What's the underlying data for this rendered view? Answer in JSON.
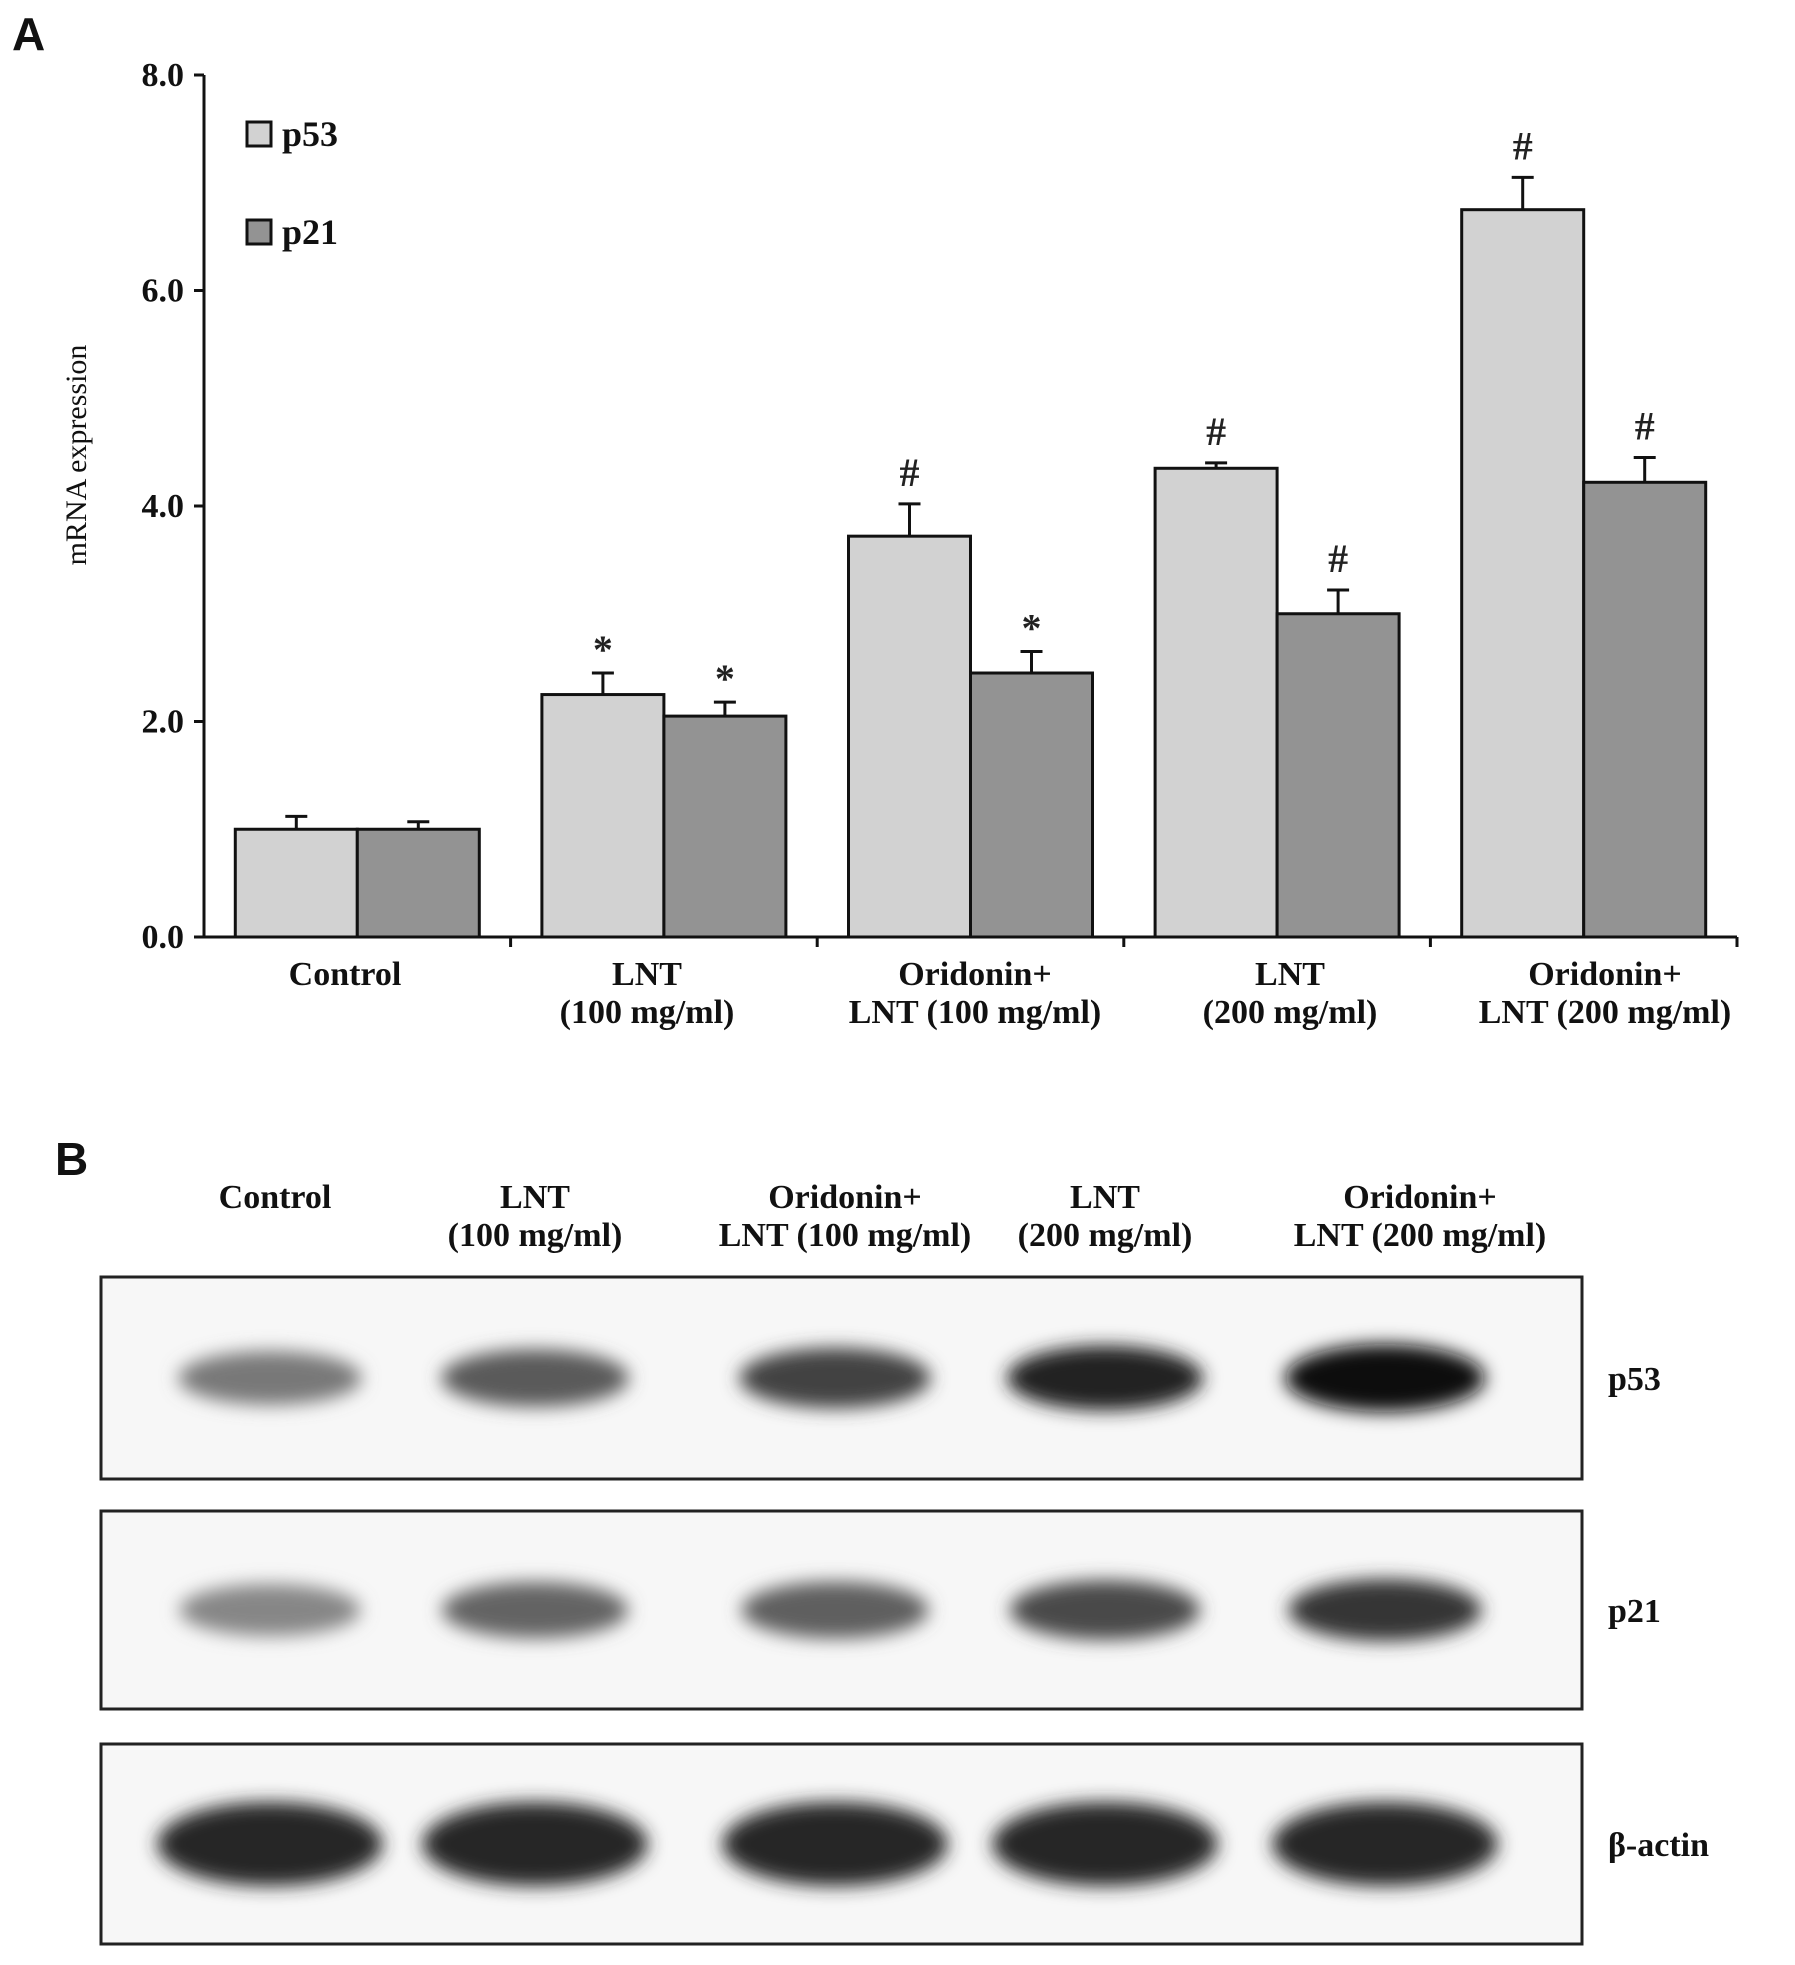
{
  "panel_a_label": "A",
  "panel_b_label": "B",
  "chart_data": {
    "type": "bar",
    "ylabel": "mRNA expression",
    "ylim": [
      0,
      8
    ],
    "yticks": [
      "0.0",
      "2.0",
      "4.0",
      "6.0",
      "8.0"
    ],
    "ytick_values": [
      0,
      2,
      4,
      6,
      8
    ],
    "categories": [
      [
        "Control"
      ],
      [
        "LNT",
        "(100 mg/ml)"
      ],
      [
        "Oridonin+",
        "LNT (100 mg/ml)"
      ],
      [
        "LNT",
        "(200 mg/ml)"
      ],
      [
        "Oridonin+",
        "LNT (200 mg/ml)"
      ]
    ],
    "legend_position": "top-left",
    "series": [
      {
        "name": "p53",
        "color": "#d2d2d2",
        "values": [
          1.0,
          2.25,
          3.72,
          4.35,
          6.75
        ],
        "errors": [
          0.12,
          0.2,
          0.3,
          0.05,
          0.3
        ],
        "marks": [
          "",
          "*",
          "#",
          "#",
          "#"
        ]
      },
      {
        "name": "p21",
        "color": "#939393",
        "values": [
          1.0,
          2.05,
          2.45,
          3.0,
          4.22
        ],
        "errors": [
          0.07,
          0.13,
          0.2,
          0.22,
          0.23
        ],
        "marks": [
          "",
          "*",
          "*",
          "#",
          "#"
        ]
      }
    ]
  },
  "blot": {
    "lanes": [
      [
        "Control"
      ],
      [
        "LNT",
        "(100 mg/ml)"
      ],
      [
        "Oridonin+",
        "LNT (100 mg/ml)"
      ],
      [
        "LNT",
        "(200 mg/ml)"
      ],
      [
        "Oridonin+",
        "LNT (200 mg/ml)"
      ]
    ],
    "rows": [
      {
        "label": "p53",
        "intensity": [
          0.45,
          0.6,
          0.72,
          0.88,
          1.0
        ]
      },
      {
        "label": "p21",
        "intensity": [
          0.38,
          0.55,
          0.58,
          0.68,
          0.78
        ]
      },
      {
        "label": "β-actin",
        "intensity": [
          0.85,
          0.85,
          0.85,
          0.85,
          0.85
        ]
      }
    ]
  }
}
